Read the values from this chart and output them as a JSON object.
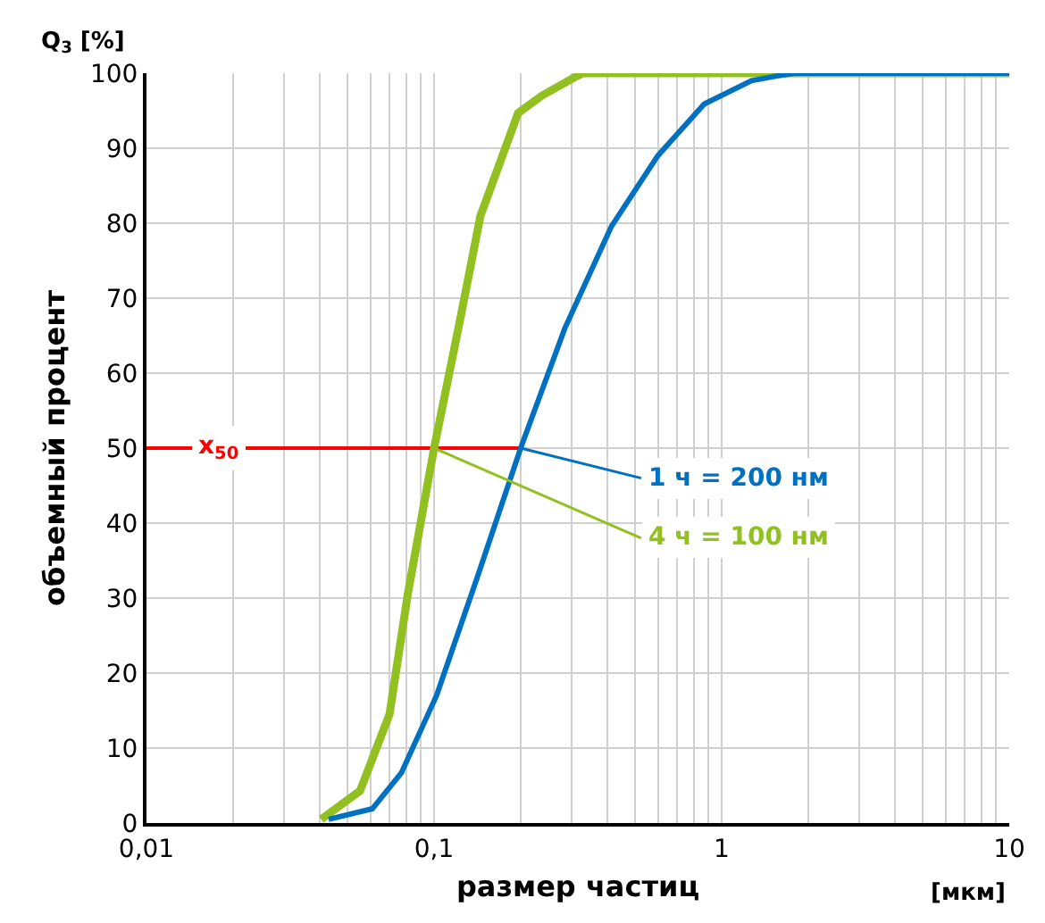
{
  "chart_data": {
    "type": "line",
    "xlabel": "размер частиц",
    "ylabel": "объемный процент",
    "log": "x",
    "xlim": [
      0.01,
      10
    ],
    "xticks": [
      {
        "value": 0.01,
        "label": "0,01"
      },
      {
        "value": 0.1,
        "label": "0,1"
      },
      1,
      10
    ],
    "ylim": [
      0,
      100
    ],
    "yticks": [
      0,
      10,
      20,
      30,
      40,
      50,
      60,
      70,
      80,
      90,
      100
    ],
    "grid": true,
    "legend": false,
    "marker": "none",
    "line_style": "solid",
    "series": [
      {
        "color": "#0070c0",
        "x": [
          0.043,
          0.061,
          0.077,
          0.102,
          0.142,
          0.2,
          0.285,
          0.414,
          0.6,
          0.87,
          1.27,
          1.54,
          1.8,
          10
        ],
        "values": [
          0.5,
          1.9,
          6.7,
          17,
          33,
          50,
          66,
          79.6,
          89,
          95.9,
          99,
          99.6,
          100,
          100
        ]
      },
      {
        "color": "#92c020",
        "x": [
          0.0405,
          0.0553,
          0.07,
          0.081,
          0.1,
          0.123,
          0.145,
          0.196,
          0.237,
          0.313,
          0.33,
          10
        ],
        "values": [
          0.5,
          4.3,
          14.5,
          30.5,
          50,
          67,
          81,
          94.7,
          97,
          99.6,
          100,
          100
        ]
      },
      {
        "name": "x$_{50}$",
        "color": "#ff0000",
        "x": [
          0.01,
          0.2
        ],
        "values": [
          50,
          50
        ]
      }
    ],
    "annotations": [
      {
        "text": "1 ч = 200 нм",
        "x": 0.2,
        "y": 50
      },
      {
        "text": "4 ч = 100 нм",
        "x": 0.1,
        "y": 50
      },
      "Q$_{3}$ [%]",
      "[мкм]"
    ]
  }
}
